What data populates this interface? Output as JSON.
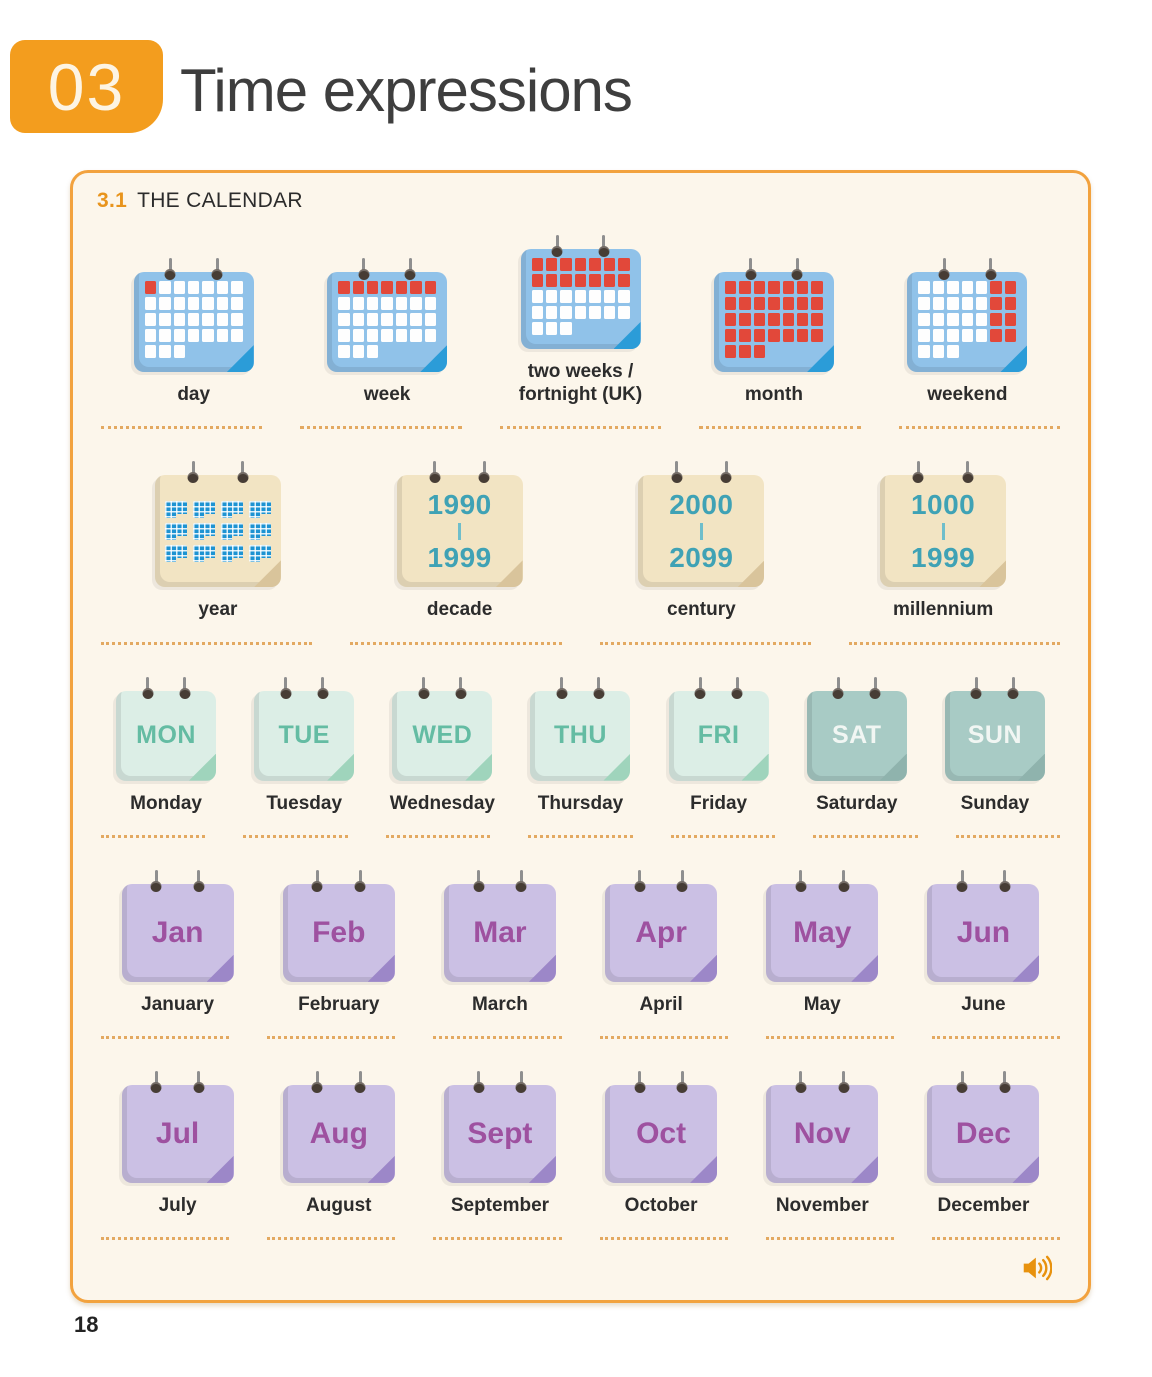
{
  "header": {
    "unit_number": "03",
    "title": "Time expressions"
  },
  "section": {
    "number": "3.1",
    "title": "THE CALENDAR"
  },
  "page_number": "18",
  "colors": {
    "accent_orange": "#F39D1E",
    "panel_border": "#F2A23E",
    "panel_background": "#FCF6EB",
    "separator_dots": "#E3A961",
    "blue_calendar": "#90C2E9",
    "red_cell": "#E2483A",
    "tan_calendar": "#F2E4C3",
    "teal_text": "#3FA2B5",
    "mint_calendar": "#DCEEE6",
    "mint_text": "#64BCA3",
    "weekend_calendar": "#A8CBC5",
    "purple_calendar": "#CBC0E4",
    "purple_text": "#9E51A0",
    "label_text": "#2C2C2C"
  },
  "audio": {
    "icon": "speaker-icon",
    "color": "#E8920E"
  },
  "rows": [
    {
      "name": "durations",
      "kind": "blue",
      "items": [
        {
          "label_lines": [
            "day"
          ],
          "red_cells": [
            0
          ]
        },
        {
          "label_lines": [
            "week"
          ],
          "red_cells": [
            0,
            1,
            2,
            3,
            4,
            5,
            6
          ]
        },
        {
          "label_lines": [
            "two weeks /",
            "fortnight (UK)"
          ],
          "red_cells": [
            0,
            1,
            2,
            3,
            4,
            5,
            6,
            7,
            8,
            9,
            10,
            11,
            12,
            13
          ]
        },
        {
          "label_lines": [
            "month"
          ],
          "red_cells": [
            0,
            1,
            2,
            3,
            4,
            5,
            6,
            7,
            8,
            9,
            10,
            11,
            12,
            13,
            14,
            15,
            16,
            17,
            18,
            19,
            20,
            21,
            22,
            23,
            24,
            25,
            26,
            27,
            28,
            29,
            30
          ]
        },
        {
          "label_lines": [
            "weekend"
          ],
          "red_cells": [
            5,
            6,
            12,
            13,
            19,
            20,
            26,
            27
          ]
        }
      ]
    },
    {
      "name": "long-periods",
      "kind": "tan",
      "items": [
        {
          "label_lines": [
            "year"
          ],
          "style": "year-grid"
        },
        {
          "label_lines": [
            "decade"
          ],
          "range_top": "1990",
          "range_bottom": "1999"
        },
        {
          "label_lines": [
            "century"
          ],
          "range_top": "2000",
          "range_bottom": "2099"
        },
        {
          "label_lines": [
            "millennium"
          ],
          "range_top": "1000",
          "range_bottom": "1999"
        }
      ]
    },
    {
      "name": "weekdays",
      "kind": "week",
      "items": [
        {
          "abbr": "MON",
          "label_lines": [
            "Monday"
          ],
          "variant": "weekday"
        },
        {
          "abbr": "TUE",
          "label_lines": [
            "Tuesday"
          ],
          "variant": "weekday"
        },
        {
          "abbr": "WED",
          "label_lines": [
            "Wednesday"
          ],
          "variant": "weekday"
        },
        {
          "abbr": "THU",
          "label_lines": [
            "Thursday"
          ],
          "variant": "weekday"
        },
        {
          "abbr": "FRI",
          "label_lines": [
            "Friday"
          ],
          "variant": "weekday"
        },
        {
          "abbr": "SAT",
          "label_lines": [
            "Saturday"
          ],
          "variant": "weekend"
        },
        {
          "abbr": "SUN",
          "label_lines": [
            "Sunday"
          ],
          "variant": "weekend"
        }
      ]
    },
    {
      "name": "months-jan-jun",
      "kind": "month",
      "items": [
        {
          "abbr": "Jan",
          "label_lines": [
            "January"
          ]
        },
        {
          "abbr": "Feb",
          "label_lines": [
            "February"
          ]
        },
        {
          "abbr": "Mar",
          "label_lines": [
            "March"
          ]
        },
        {
          "abbr": "Apr",
          "label_lines": [
            "April"
          ]
        },
        {
          "abbr": "May",
          "label_lines": [
            "May"
          ]
        },
        {
          "abbr": "Jun",
          "label_lines": [
            "June"
          ]
        }
      ]
    },
    {
      "name": "months-jul-dec",
      "kind": "month",
      "items": [
        {
          "abbr": "Jul",
          "label_lines": [
            "July"
          ]
        },
        {
          "abbr": "Aug",
          "label_lines": [
            "August"
          ]
        },
        {
          "abbr": "Sept",
          "label_lines": [
            "September"
          ]
        },
        {
          "abbr": "Oct",
          "label_lines": [
            "October"
          ]
        },
        {
          "abbr": "Nov",
          "label_lines": [
            "November"
          ]
        },
        {
          "abbr": "Dec",
          "label_lines": [
            "December"
          ]
        }
      ]
    }
  ]
}
